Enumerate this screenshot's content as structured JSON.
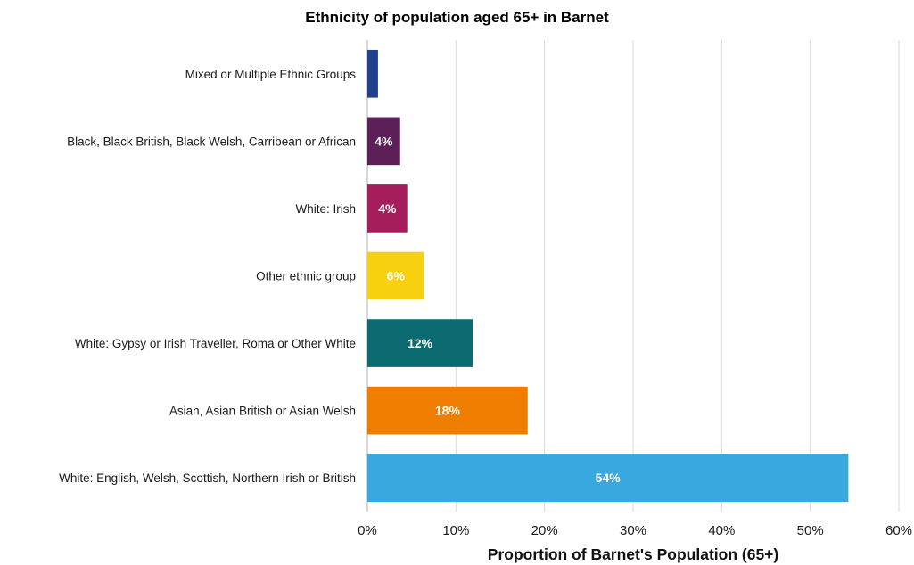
{
  "chart_data": {
    "type": "bar",
    "orientation": "horizontal",
    "title": "Ethnicity of population aged 65+ in Barnet",
    "xlabel": "Proportion of Barnet's Population (65+)",
    "ylabel": "",
    "xlim": [
      0,
      60
    ],
    "xticks": [
      "0%",
      "10%",
      "20%",
      "30%",
      "40%",
      "50%",
      "60%"
    ],
    "grid": "vertical",
    "legend": "none",
    "categories": [
      "Mixed or Multiple Ethnic Groups",
      "Black, Black British, Black Welsh, Carribean or African",
      "White: Irish",
      "Other ethnic group",
      "White: Gypsy or Irish Traveller, Roma or Other White",
      "Asian, Asian British or Asian Welsh",
      "White: English, Welsh, Scottish, Northern Irish or British"
    ],
    "values": [
      1.2,
      3.7,
      4.5,
      6.4,
      11.9,
      18.1,
      54.3
    ],
    "data_labels": [
      "",
      "4%",
      "4%",
      "6%",
      "12%",
      "18%",
      "54%"
    ],
    "colors": [
      "#1f3f8f",
      "#5c1f57",
      "#a61d5c",
      "#f7d110",
      "#0b6b70",
      "#ee7d00",
      "#38a8df"
    ]
  }
}
